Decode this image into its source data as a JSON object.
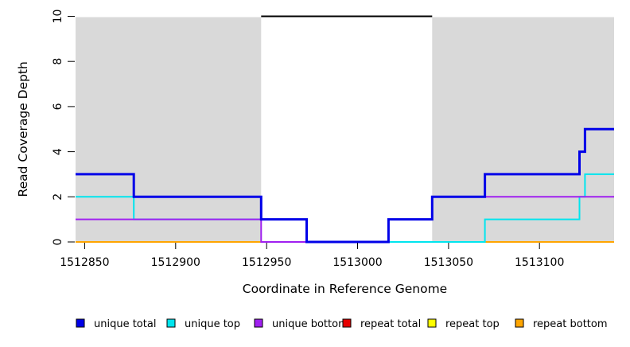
{
  "chart_data": {
    "type": "line",
    "subtype": "step-coverage",
    "title": "",
    "xlabel": "Coordinate in Reference Genome",
    "ylabel": "Read Coverage Depth",
    "xlim": [
      1512845,
      1513141
    ],
    "ylim": [
      0,
      10
    ],
    "grid": false,
    "x_ticks": [
      {
        "value": 1512850,
        "label": "1512850"
      },
      {
        "value": 1512900,
        "label": "1512900"
      },
      {
        "value": 1512950,
        "label": "1512950"
      },
      {
        "value": 1513000,
        "label": "1513000"
      },
      {
        "value": 1513050,
        "label": "1513050"
      },
      {
        "value": 1513100,
        "label": "1513100"
      }
    ],
    "y_ticks": [
      {
        "value": 0,
        "label": "0"
      },
      {
        "value": 2,
        "label": "2"
      },
      {
        "value": 4,
        "label": "4"
      },
      {
        "value": 6,
        "label": "6"
      },
      {
        "value": 8,
        "label": "8"
      },
      {
        "value": 10,
        "label": "10"
      }
    ],
    "shaded_regions": [
      {
        "from": 1512845,
        "to": 1512947,
        "color": "#d9d9d9"
      },
      {
        "from": 1513041,
        "to": 1513141,
        "color": "#d9d9d9"
      }
    ],
    "cap_line": {
      "y": 10,
      "from": 1512947,
      "to": 1513041,
      "color": "#000000",
      "width": 2
    },
    "series": [
      {
        "name": "repeat total",
        "color": "#e60000",
        "width": 2,
        "steps": [
          [
            1512845,
            0
          ]
        ]
      },
      {
        "name": "repeat top",
        "color": "#ffff00",
        "width": 2,
        "steps": [
          [
            1512845,
            0
          ]
        ]
      },
      {
        "name": "repeat bottom",
        "color": "#ffa500",
        "width": 2,
        "steps": [
          [
            1512845,
            0
          ]
        ]
      },
      {
        "name": "unique top",
        "color": "#00e5ee",
        "width": 2,
        "steps": [
          [
            1512845,
            2
          ],
          [
            1512877,
            1
          ],
          [
            1512972,
            0
          ],
          [
            1513070,
            1
          ],
          [
            1513122,
            2
          ],
          [
            1513125,
            3
          ]
        ]
      },
      {
        "name": "unique bottom",
        "color": "#a020f0",
        "width": 2,
        "steps": [
          [
            1512845,
            1
          ],
          [
            1512947,
            0
          ],
          [
            1513017,
            1
          ],
          [
            1513041,
            2
          ]
        ]
      },
      {
        "name": "unique total",
        "color": "#0000e8",
        "width": 3,
        "steps": [
          [
            1512845,
            3
          ],
          [
            1512877,
            2
          ],
          [
            1512947,
            1
          ],
          [
            1512972,
            0
          ],
          [
            1513017,
            1
          ],
          [
            1513041,
            2
          ],
          [
            1513070,
            3
          ],
          [
            1513122,
            4
          ],
          [
            1513125,
            5
          ]
        ]
      }
    ]
  },
  "legend": {
    "items": [
      {
        "label": "unique total",
        "color": "#0000e8"
      },
      {
        "label": "unique top",
        "color": "#00e5ee"
      },
      {
        "label": "unique bottom",
        "color": "#a020f0"
      },
      {
        "label": "repeat total",
        "color": "#e60000"
      },
      {
        "label": "repeat top",
        "color": "#ffff00"
      },
      {
        "label": "repeat bottom",
        "color": "#ffa500"
      }
    ]
  }
}
